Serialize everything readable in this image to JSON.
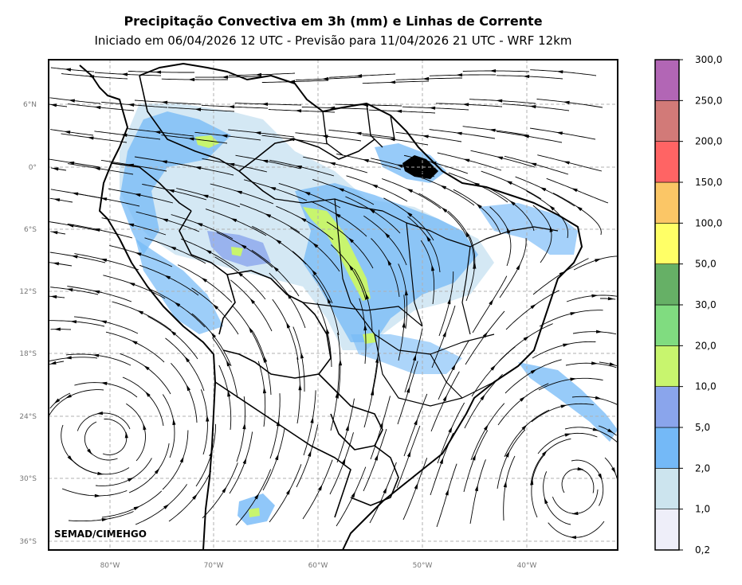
{
  "header": {
    "title": "Precipitação Convectiva em 3h (mm) e Linhas de Corrente",
    "subtitle": "Iniciado em 06/04/2026 12 UTC - Previsão para 11/04/2026 21 UTC - WRF 12km"
  },
  "map": {
    "credit": "SEMAD/CIMEHGO",
    "lat_labels": [
      "6°N",
      "0°",
      "6°S",
      "12°S",
      "18°S",
      "24°S",
      "30°S",
      "36°S"
    ],
    "lon_labels": [
      "80°W",
      "70°W",
      "60°W",
      "50°W",
      "40°W"
    ],
    "colors": {
      "coast": "#000000",
      "grid": "#b0b0b0",
      "streamline": "#000000",
      "rain_light": "#cfe6f3",
      "rain_blue": "#74b9f7",
      "rain_mid": "#8aa5ec",
      "rain_green": "#c8f56e"
    }
  },
  "colorbar": {
    "ticks": [
      "0,2",
      "1,0",
      "2,0",
      "5,0",
      "10,0",
      "20,0",
      "30,0",
      "50,0",
      "100,0",
      "150,0",
      "200,0",
      "250,0",
      "300,0"
    ],
    "colors": [
      "#eeeef9",
      "#cce4ee",
      "#74b9f7",
      "#8aa5ec",
      "#c8f56e",
      "#80dc80",
      "#66b066",
      "#ffff66",
      "#fbc666",
      "#ff6464",
      "#d27a78",
      "#b266b5"
    ]
  }
}
